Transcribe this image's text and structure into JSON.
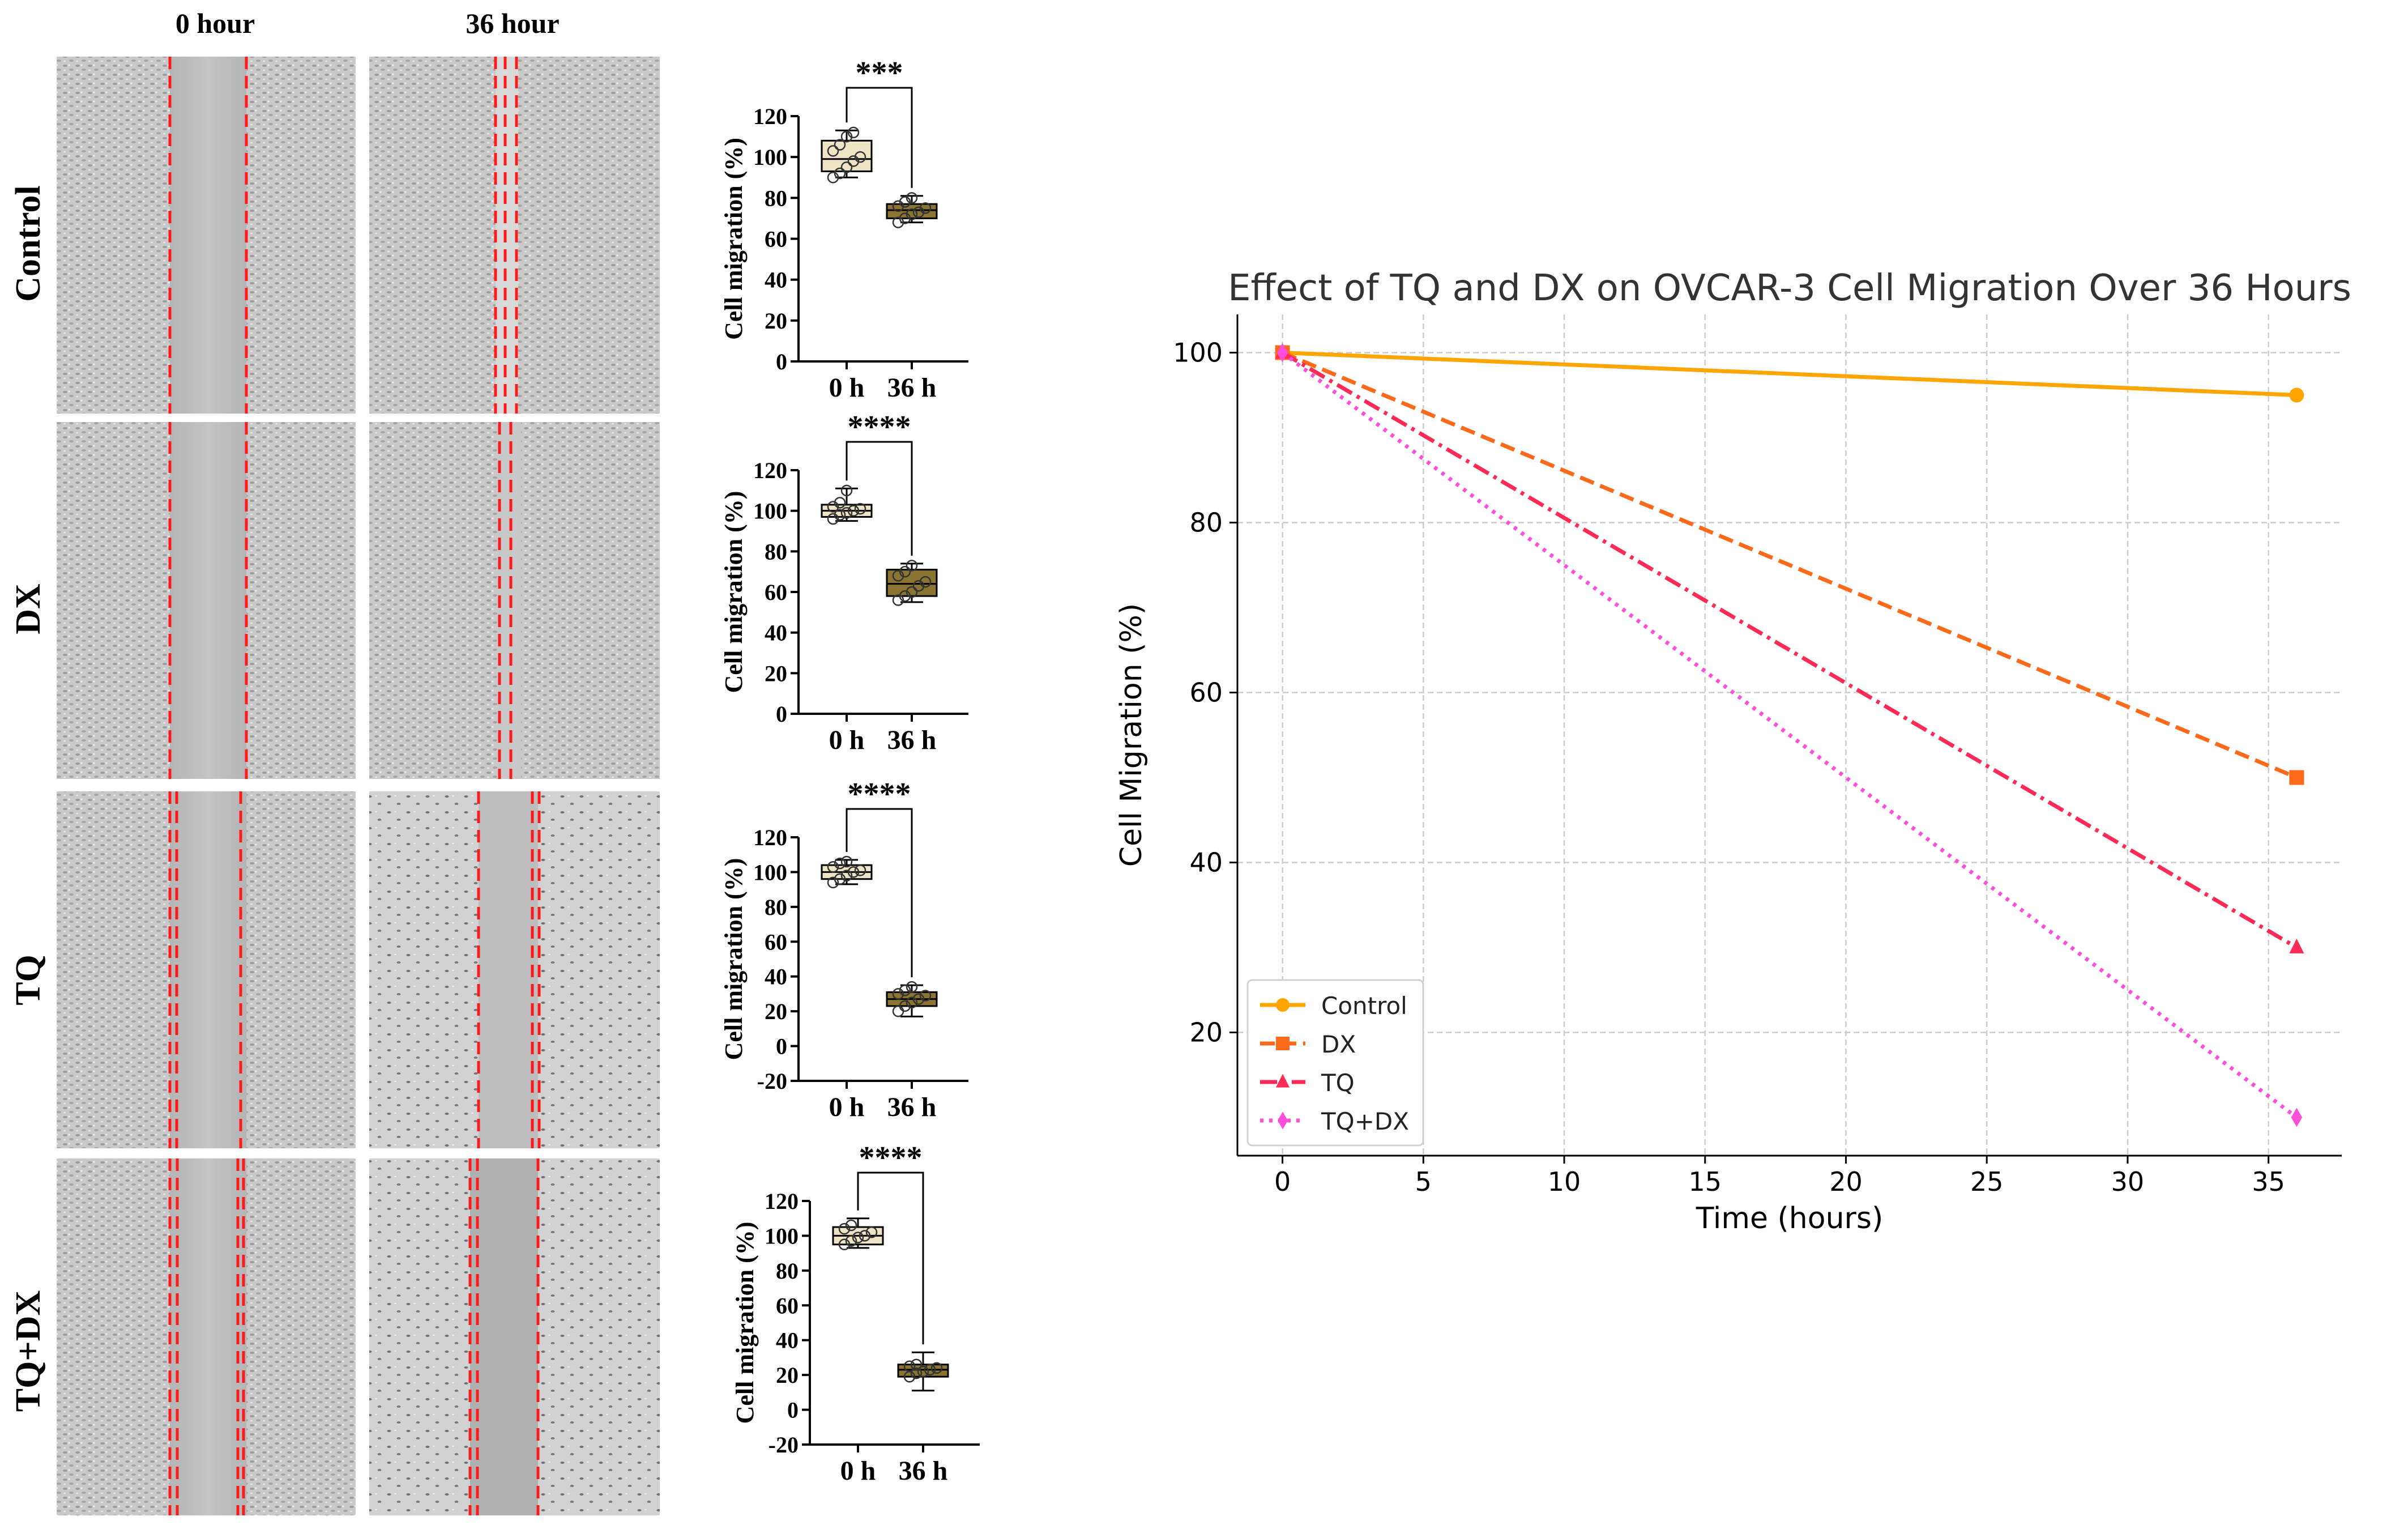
{
  "figure": {
    "columns": [
      "0 hour",
      "36 hour"
    ],
    "rows": [
      "Control",
      "DX",
      "TQ",
      "TQ+DX"
    ]
  },
  "chart_data": [
    {
      "type": "box",
      "panel": "Control",
      "ylabel": "Cell migration (%)",
      "ylim": [
        0,
        120
      ],
      "yticks": [
        0,
        20,
        40,
        60,
        80,
        100,
        120
      ],
      "categories": [
        "0 h",
        "36 h"
      ],
      "significance": "***",
      "boxes": [
        {
          "min": 90,
          "q1": 93,
          "median": 99,
          "q3": 108,
          "max": 113,
          "points": [
            90,
            92,
            95,
            98,
            100,
            103,
            106,
            110,
            112
          ]
        },
        {
          "min": 68,
          "q1": 70,
          "median": 74,
          "q3": 77,
          "max": 81,
          "points": [
            68,
            70,
            72,
            73,
            75,
            76,
            78,
            80
          ]
        }
      ]
    },
    {
      "type": "box",
      "panel": "DX",
      "ylabel": "Cell migration (%)",
      "ylim": [
        0,
        120
      ],
      "yticks": [
        0,
        20,
        40,
        60,
        80,
        100,
        120
      ],
      "categories": [
        "0 h",
        "36 h"
      ],
      "significance": "****",
      "boxes": [
        {
          "min": 95,
          "q1": 97,
          "median": 100,
          "q3": 103,
          "max": 111,
          "points": [
            96,
            98,
            99,
            100,
            101,
            102,
            104,
            110
          ]
        },
        {
          "min": 55,
          "q1": 58,
          "median": 64,
          "q3": 71,
          "max": 74,
          "points": [
            56,
            58,
            60,
            63,
            65,
            68,
            70,
            73
          ]
        }
      ]
    },
    {
      "type": "box",
      "panel": "TQ",
      "ylabel": "Cell migration (%)",
      "ylim": [
        -20,
        120
      ],
      "yticks": [
        -20,
        0,
        20,
        40,
        60,
        80,
        100,
        120
      ],
      "categories": [
        "0 h",
        "36 h"
      ],
      "significance": "****",
      "boxes": [
        {
          "min": 93,
          "q1": 96,
          "median": 100,
          "q3": 104,
          "max": 107,
          "points": [
            94,
            96,
            98,
            100,
            101,
            103,
            105,
            106
          ]
        },
        {
          "min": 17,
          "q1": 23,
          "median": 27,
          "q3": 31,
          "max": 35,
          "points": [
            20,
            23,
            25,
            27,
            29,
            30,
            32,
            34
          ]
        }
      ]
    },
    {
      "type": "box",
      "panel": "TQ+DX",
      "ylabel": "Cell migration (%)",
      "ylim": [
        -20,
        120
      ],
      "yticks": [
        -20,
        0,
        20,
        40,
        60,
        80,
        100,
        120
      ],
      "categories": [
        "0 h",
        "36 h"
      ],
      "significance": "****",
      "boxes": [
        {
          "min": 93,
          "q1": 95,
          "median": 100,
          "q3": 105,
          "max": 110,
          "points": [
            95,
            97,
            99,
            100,
            102,
            104,
            106
          ]
        },
        {
          "min": 11,
          "q1": 19,
          "median": 23,
          "q3": 26,
          "max": 33,
          "points": [
            19,
            21,
            22,
            23,
            24,
            25,
            26
          ]
        }
      ]
    },
    {
      "type": "line",
      "title": "Effect of TQ and DX on OVCAR-3 Cell Migration Over 36 Hours",
      "xlabel": "Time (hours)",
      "ylabel": "Cell Migration (%)",
      "xlim": [
        -1.6,
        37.6
      ],
      "ylim": [
        5.5,
        104.5
      ],
      "xticks": [
        0,
        5,
        10,
        15,
        20,
        25,
        30,
        35
      ],
      "yticks": [
        20,
        40,
        60,
        80,
        100
      ],
      "grid": true,
      "legend": "bottom-left",
      "x": [
        0,
        36
      ],
      "series": [
        {
          "name": "Control",
          "values": [
            100,
            95
          ],
          "color": "#FFA500",
          "dash": "solid",
          "marker": "circle"
        },
        {
          "name": "DX",
          "values": [
            100,
            50
          ],
          "color": "#FF6A1A",
          "dash": "dashed",
          "marker": "square"
        },
        {
          "name": "TQ",
          "values": [
            100,
            30
          ],
          "color": "#FF2A55",
          "dash": "dashdot",
          "marker": "triangle"
        },
        {
          "name": "TQ+DX",
          "values": [
            100,
            10
          ],
          "color": "#FF4FD8",
          "dash": "dotted",
          "marker": "diamond"
        }
      ]
    }
  ]
}
